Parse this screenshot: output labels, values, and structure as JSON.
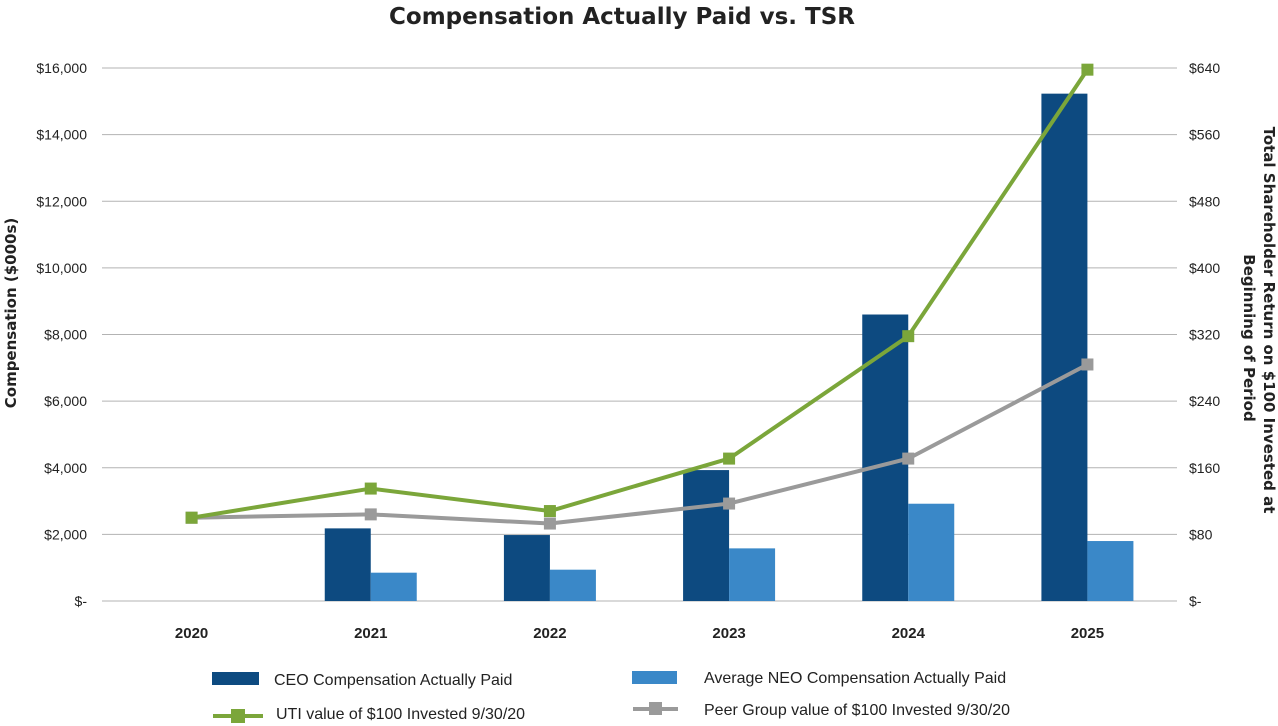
{
  "chart_data": {
    "type": "bar",
    "title": "Compensation Actually Paid vs. TSR",
    "categories": [
      "2020",
      "2021",
      "2022",
      "2023",
      "2024",
      "2025"
    ],
    "y_left": {
      "label": "Compensation ($000s)",
      "ylim": [
        0,
        16000
      ],
      "ticks": [
        0,
        2000,
        4000,
        6000,
        8000,
        10000,
        12000,
        14000,
        16000
      ],
      "tick_labels": [
        "$-",
        "$2,000",
        "$4,000",
        "$6,000",
        "$8,000",
        "$10,000",
        "$12,000",
        "$14,000",
        "$16,000"
      ]
    },
    "y_right": {
      "label_line1": "Total Shareholder Return on $100 Invested at",
      "label_line2": "Beginning of Period",
      "ylim": [
        0,
        640
      ],
      "ticks": [
        0,
        80,
        160,
        240,
        320,
        400,
        480,
        560,
        640
      ],
      "tick_labels": [
        "$-",
        "$80",
        "$160",
        "$240",
        "$320",
        "$400",
        "$480",
        "$560",
        "$640"
      ]
    },
    "bar_series": [
      {
        "name": "CEO Compensation Actually Paid",
        "color": "#0d4a80",
        "axis": "left",
        "values": [
          null,
          2180,
          1980,
          3930,
          8600,
          15230
        ]
      },
      {
        "name": "Average NEO Compensation Actually Paid",
        "color": "#3a88c8",
        "axis": "left",
        "values": [
          null,
          850,
          940,
          1580,
          2920,
          1800
        ]
      }
    ],
    "line_series": [
      {
        "name": "UTI value of $100 Invested 9/30/20",
        "color": "#7ba63a",
        "axis": "right",
        "values": [
          100,
          135,
          108,
          171,
          318,
          638
        ]
      },
      {
        "name": "Peer Group value of $100 Invested 9/30/20",
        "color": "#9a9a9a",
        "axis": "right",
        "values": [
          100,
          104,
          93,
          117,
          171,
          284
        ]
      }
    ],
    "grid": true,
    "legend_position": "bottom"
  }
}
